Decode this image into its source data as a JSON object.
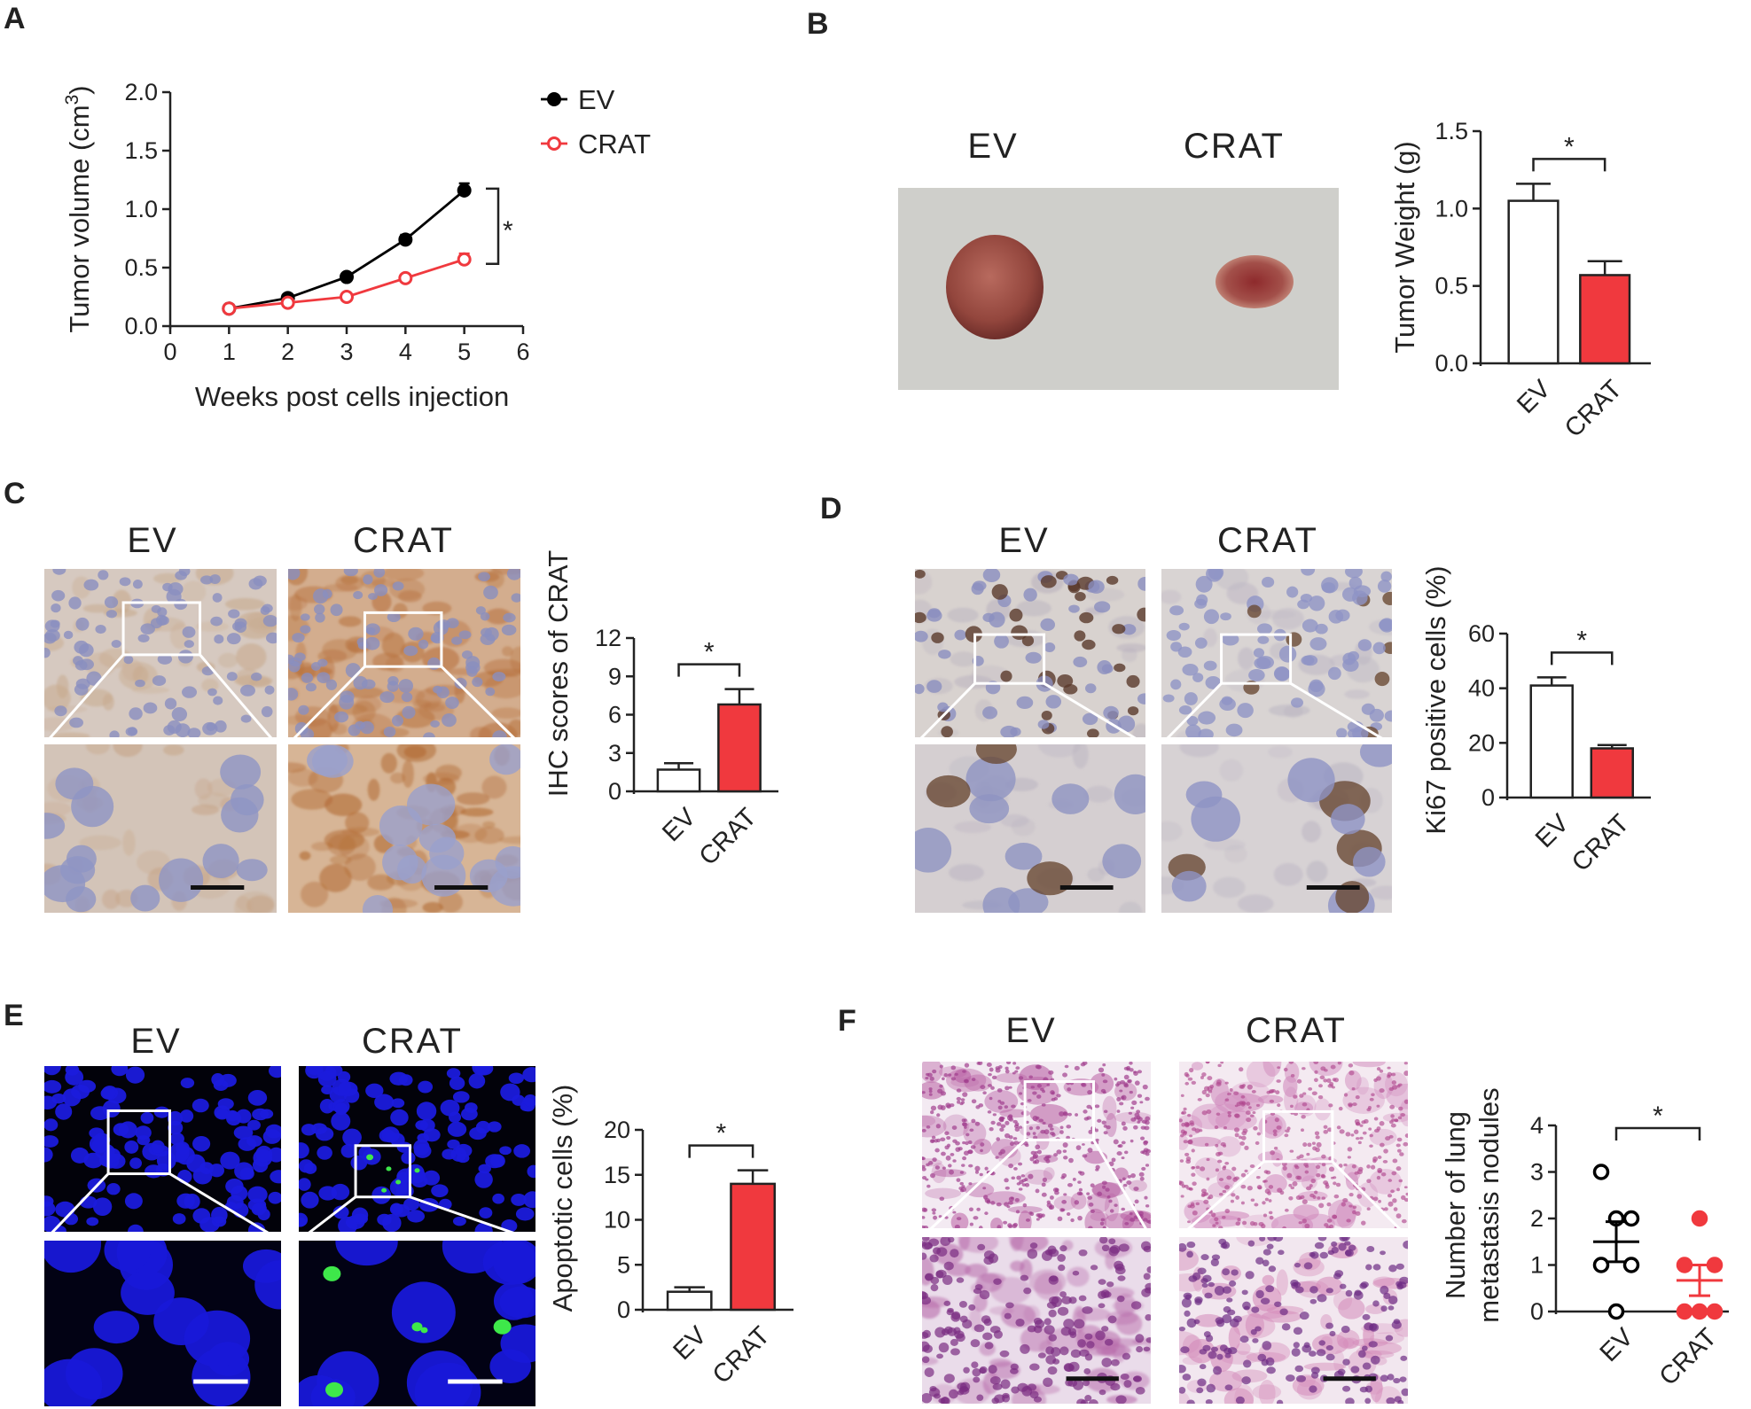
{
  "panels": {
    "A": {
      "label": "A"
    },
    "B": {
      "label": "B",
      "group_labels": [
        "EV",
        "CRAT"
      ]
    },
    "C": {
      "label": "C",
      "group_labels": [
        "EV",
        "CRAT"
      ]
    },
    "D": {
      "label": "D",
      "group_labels": [
        "EV",
        "CRAT"
      ]
    },
    "E": {
      "label": "E",
      "group_labels": [
        "EV",
        "CRAT"
      ]
    },
    "F": {
      "label": "F",
      "group_labels": [
        "EV",
        "CRAT"
      ]
    }
  },
  "colors": {
    "ev": "#000000",
    "crat": "#f0393e",
    "bar_ev": "#ffffff",
    "bar_crat": "#f0393e"
  },
  "chart_data": [
    {
      "id": "A",
      "type": "line",
      "xlabel": "Weeks post cells injection",
      "ylabel": "Tumor volume (cm",
      "ylabel_sup": "3",
      "ylabel_close": ")",
      "xlim": [
        0,
        6
      ],
      "ylim": [
        0,
        2.0
      ],
      "xticks": [
        "0",
        "1",
        "2",
        "3",
        "4",
        "5",
        "6"
      ],
      "yticks": [
        "0.0",
        "0.5",
        "1.0",
        "1.5",
        "2.0"
      ],
      "significance": "*",
      "series": [
        {
          "name": "EV",
          "x": [
            1,
            2,
            3,
            4,
            5
          ],
          "y": [
            0.15,
            0.24,
            0.42,
            0.74,
            1.16
          ],
          "err": [
            0.02,
            0.02,
            0.03,
            0.04,
            0.06
          ]
        },
        {
          "name": "CRAT",
          "x": [
            1,
            2,
            3,
            4,
            5
          ],
          "y": [
            0.15,
            0.2,
            0.25,
            0.41,
            0.57
          ],
          "err": [
            0.02,
            0.02,
            0.02,
            0.03,
            0.05
          ]
        }
      ]
    },
    {
      "id": "B",
      "type": "bar",
      "ylabel": "Tumor Weight (g)",
      "categories": [
        "EV",
        "CRAT"
      ],
      "values": [
        1.05,
        0.57
      ],
      "err": [
        0.11,
        0.09
      ],
      "ylim": [
        0,
        1.5
      ],
      "yticks": [
        "0.0",
        "0.5",
        "1.0",
        "1.5"
      ],
      "significance": "*"
    },
    {
      "id": "C",
      "type": "bar",
      "ylabel": "IHC scores of CRAT",
      "categories": [
        "EV",
        "CRAT"
      ],
      "values": [
        1.7,
        6.8
      ],
      "err": [
        0.5,
        1.2
      ],
      "ylim": [
        0,
        12
      ],
      "yticks": [
        "0",
        "3",
        "6",
        "9",
        "12"
      ],
      "significance": "*"
    },
    {
      "id": "D",
      "type": "bar",
      "ylabel": "Ki67 positive cells (%)",
      "categories": [
        "EV",
        "CRAT"
      ],
      "values": [
        41,
        18
      ],
      "err": [
        3,
        1.2
      ],
      "ylim": [
        0,
        60
      ],
      "yticks": [
        "0",
        "20",
        "40",
        "60"
      ],
      "significance": "*"
    },
    {
      "id": "E",
      "type": "bar",
      "ylabel": "Apoptotic cells (%)",
      "categories": [
        "EV",
        "CRAT"
      ],
      "values": [
        2.0,
        14.0
      ],
      "err": [
        0.5,
        1.5
      ],
      "ylim": [
        0,
        20
      ],
      "yticks": [
        "0",
        "5",
        "10",
        "15",
        "20"
      ],
      "significance": "*"
    },
    {
      "id": "F",
      "type": "scatter",
      "ylabel": "Number of lung metastasis nodules",
      "ylabel_lines": [
        "Number of lung",
        "metastasis nodules"
      ],
      "categories": [
        "EV",
        "CRAT"
      ],
      "points": [
        [
          3,
          2,
          2,
          1,
          1,
          0
        ],
        [
          2,
          1,
          1,
          0,
          0,
          0
        ]
      ],
      "mean": [
        1.5,
        0.67
      ],
      "sem": [
        0.43,
        0.33
      ],
      "ylim": [
        0,
        4
      ],
      "yticks": [
        "0",
        "1",
        "2",
        "3",
        "4"
      ],
      "significance": "*"
    }
  ]
}
